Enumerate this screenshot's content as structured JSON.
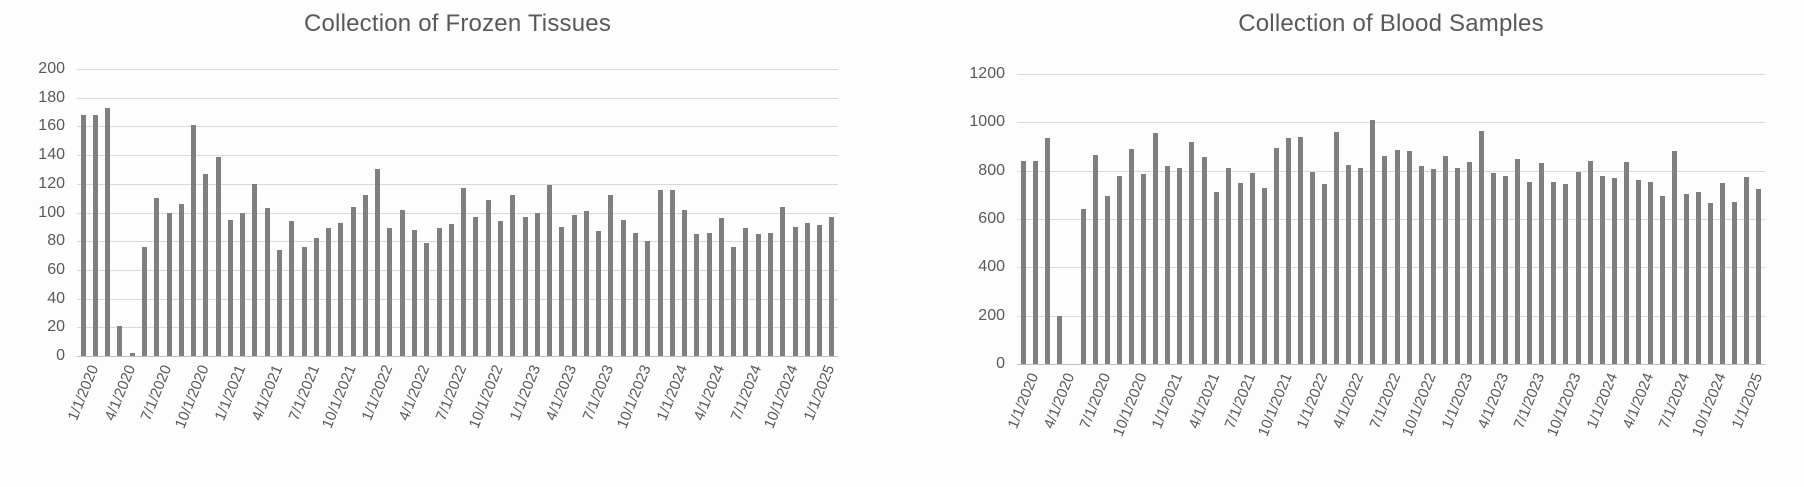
{
  "page": {
    "background": "#fdfdfd"
  },
  "chart_data": [
    {
      "type": "bar",
      "title": "Collection of Frozen Tissues",
      "bar_color": "#7f7f7f",
      "grid_color": "#d9d9d9",
      "text_color": "#595959",
      "grid": "horizontal",
      "legend_position": "none",
      "ylim": [
        0,
        200
      ],
      "y_ticks": [
        200,
        180,
        160,
        140,
        120,
        100,
        80,
        60,
        40,
        20,
        0
      ],
      "x_tick_every": 3,
      "x_tick_labels": [
        "1/1/2020",
        "4/1/2020",
        "7/1/2020",
        "10/1/2020",
        "1/1/2021",
        "4/1/2021",
        "7/1/2021",
        "10/1/2021",
        "1/1/2022",
        "4/1/2022",
        "7/1/2022",
        "10/1/2022",
        "1/1/2023",
        "4/1/2023",
        "7/1/2023",
        "10/1/2023",
        "1/1/2024",
        "4/1/2024",
        "7/1/2024",
        "10/1/2024",
        "1/1/2025"
      ],
      "months": [
        "1/1/2020",
        "2/1/2020",
        "3/1/2020",
        "4/1/2020",
        "5/1/2020",
        "6/1/2020",
        "7/1/2020",
        "8/1/2020",
        "9/1/2020",
        "10/1/2020",
        "11/1/2020",
        "12/1/2020",
        "1/1/2021",
        "2/1/2021",
        "3/1/2021",
        "4/1/2021",
        "5/1/2021",
        "6/1/2021",
        "7/1/2021",
        "8/1/2021",
        "9/1/2021",
        "10/1/2021",
        "11/1/2021",
        "12/1/2021",
        "1/1/2022",
        "2/1/2022",
        "3/1/2022",
        "4/1/2022",
        "5/1/2022",
        "6/1/2022",
        "7/1/2022",
        "8/1/2022",
        "9/1/2022",
        "10/1/2022",
        "11/1/2022",
        "12/1/2022",
        "1/1/2023",
        "2/1/2023",
        "3/1/2023",
        "4/1/2023",
        "5/1/2023",
        "6/1/2023",
        "7/1/2023",
        "8/1/2023",
        "9/1/2023",
        "10/1/2023",
        "11/1/2023",
        "12/1/2023",
        "1/1/2024",
        "2/1/2024",
        "3/1/2024",
        "4/1/2024",
        "5/1/2024",
        "6/1/2024",
        "7/1/2024",
        "8/1/2024",
        "9/1/2024",
        "10/1/2024",
        "11/1/2024",
        "12/1/2024",
        "1/1/2025",
        "2/1/2025"
      ],
      "values": [
        168,
        168,
        173,
        21,
        2,
        76,
        110,
        100,
        106,
        161,
        127,
        139,
        95,
        100,
        120,
        103,
        74,
        94,
        76,
        82,
        89,
        93,
        104,
        112,
        130,
        89,
        102,
        88,
        79,
        89,
        92,
        117,
        97,
        109,
        94,
        112,
        97,
        100,
        119,
        90,
        98,
        101,
        87,
        112,
        95,
        86,
        80,
        116,
        116,
        102,
        85,
        86,
        96,
        76,
        89,
        85,
        86,
        104,
        90,
        93,
        91,
        97
      ]
    },
    {
      "type": "bar",
      "title": "Collection of Blood Samples",
      "bar_color": "#7f7f7f",
      "grid_color": "#d9d9d9",
      "text_color": "#595959",
      "grid": "horizontal",
      "legend_position": "none",
      "ylim": [
        0,
        1200
      ],
      "y_ticks": [
        1200,
        1000,
        800,
        600,
        400,
        200,
        0
      ],
      "x_tick_every": 3,
      "x_tick_labels": [
        "1/1/2020",
        "4/1/2020",
        "7/1/2020",
        "10/1/2020",
        "1/1/2021",
        "4/1/2021",
        "7/1/2021",
        "10/1/2021",
        "1/1/2022",
        "4/1/2022",
        "7/1/2022",
        "10/1/2022",
        "1/1/2023",
        "4/1/2023",
        "7/1/2023",
        "10/1/2023",
        "1/1/2024",
        "4/1/2024",
        "7/1/2024",
        "10/1/2024",
        "1/1/2025"
      ],
      "months": [
        "1/1/2020",
        "2/1/2020",
        "3/1/2020",
        "4/1/2020",
        "5/1/2020",
        "6/1/2020",
        "7/1/2020",
        "8/1/2020",
        "9/1/2020",
        "10/1/2020",
        "11/1/2020",
        "12/1/2020",
        "1/1/2021",
        "2/1/2021",
        "3/1/2021",
        "4/1/2021",
        "5/1/2021",
        "6/1/2021",
        "7/1/2021",
        "8/1/2021",
        "9/1/2021",
        "10/1/2021",
        "11/1/2021",
        "12/1/2021",
        "1/1/2022",
        "2/1/2022",
        "3/1/2022",
        "4/1/2022",
        "5/1/2022",
        "6/1/2022",
        "7/1/2022",
        "8/1/2022",
        "9/1/2022",
        "10/1/2022",
        "11/1/2022",
        "12/1/2022",
        "1/1/2023",
        "2/1/2023",
        "3/1/2023",
        "4/1/2023",
        "5/1/2023",
        "6/1/2023",
        "7/1/2023",
        "8/1/2023",
        "9/1/2023",
        "10/1/2023",
        "11/1/2023",
        "12/1/2023",
        "1/1/2024",
        "2/1/2024",
        "3/1/2024",
        "4/1/2024",
        "5/1/2024",
        "6/1/2024",
        "7/1/2024",
        "8/1/2024",
        "9/1/2024",
        "10/1/2024",
        "11/1/2024",
        "12/1/2024",
        "1/1/2025",
        "2/1/2025"
      ],
      "values": [
        840,
        840,
        935,
        200,
        0,
        640,
        865,
        695,
        780,
        890,
        785,
        955,
        820,
        810,
        920,
        855,
        710,
        810,
        750,
        790,
        730,
        895,
        935,
        940,
        795,
        745,
        960,
        825,
        810,
        1010,
        860,
        885,
        880,
        820,
        805,
        860,
        810,
        835,
        965,
        790,
        780,
        850,
        755,
        830,
        755,
        745,
        795,
        840,
        780,
        770,
        835,
        760,
        755,
        695,
        880,
        705,
        710,
        665,
        750,
        670,
        775,
        725
      ]
    }
  ]
}
